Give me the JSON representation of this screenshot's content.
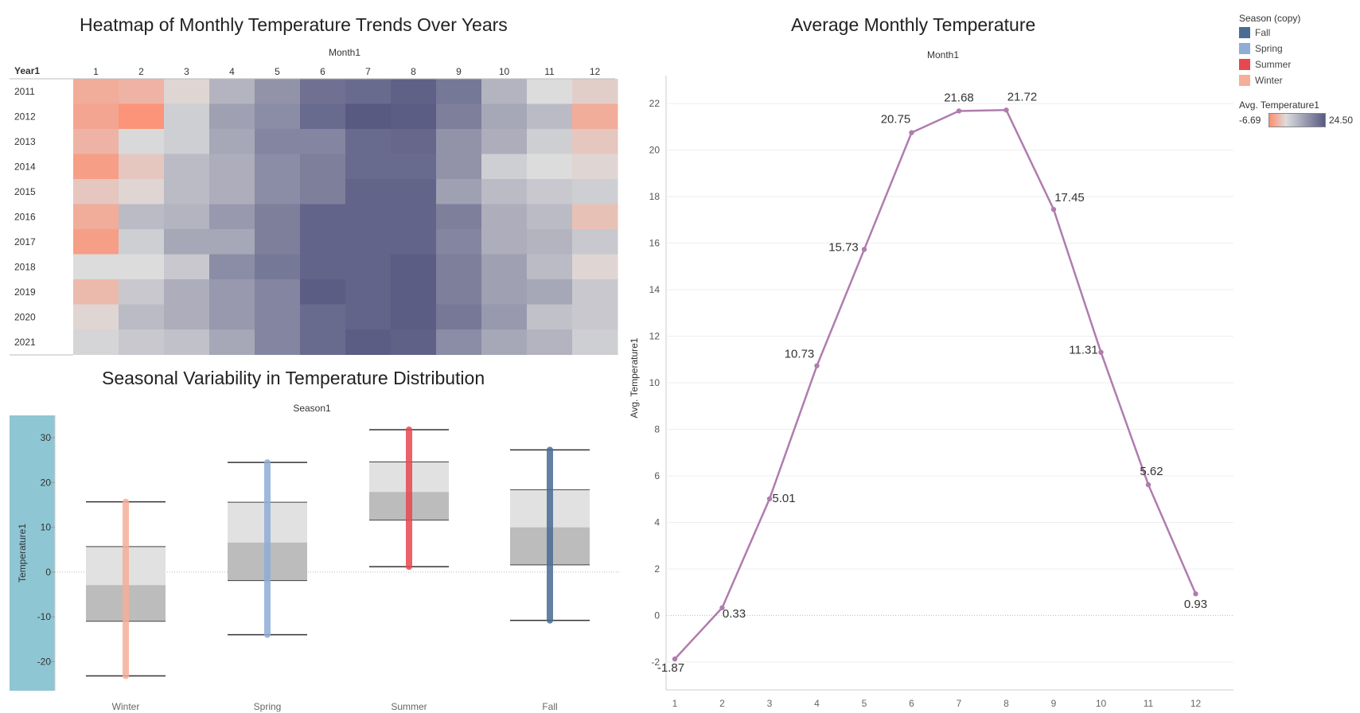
{
  "heatmap": {
    "title": "Heatmap of Monthly Temperature Trends Over Years",
    "column_header": "Month1",
    "row_header": "Year1"
  },
  "boxplot": {
    "title": "Seasonal Variability in Temperature Distribution",
    "column_header": "Season1",
    "ylabel": "Temperature1"
  },
  "linechart": {
    "title": "Average Monthly Temperature",
    "column_header": "Month1",
    "ylabel": "Avg. Temperature1"
  },
  "legend": {
    "season_title": "Season (copy)",
    "seasons": [
      {
        "label": "Fall",
        "color": "#4a6b94"
      },
      {
        "label": "Spring",
        "color": "#8fadd6"
      },
      {
        "label": "Summer",
        "color": "#e8474f"
      },
      {
        "label": "Winter",
        "color": "#f7ae99"
      }
    ],
    "temp_title": "Avg. Temperature1",
    "temp_min": "-6.69",
    "temp_max": "24.50"
  },
  "colors": {
    "heat_low": "#ff8c6e",
    "heat_mid": "#dcdcdc",
    "heat_high": "#585a82",
    "line": "#b07cae",
    "box_upper": "#e1e1e1",
    "box_lower": "#bcbcbc",
    "axis_band": "#8ec6d4"
  },
  "chart_data": [
    {
      "type": "heatmap",
      "title": "Heatmap of Monthly Temperature Trends Over Years",
      "xlabel": "Month1",
      "ylabel": "Year1",
      "x": [
        "1",
        "2",
        "3",
        "4",
        "5",
        "6",
        "7",
        "8",
        "9",
        "10",
        "11",
        "12"
      ],
      "y": [
        "2011",
        "2012",
        "2013",
        "2014",
        "2015",
        "2016",
        "2017",
        "2018",
        "2019",
        "2020",
        "2021"
      ],
      "color_range": [
        -6.69,
        24.5
      ],
      "values": [
        [
          -2.0,
          -1.0,
          4.0,
          11.0,
          16.0,
          21.0,
          22.0,
          23.5,
          20.0,
          11.0,
          5.0,
          3.0
        ],
        [
          -3.0,
          -5.5,
          7.0,
          14.0,
          17.0,
          22.0,
          24.5,
          24.0,
          19.0,
          13.0,
          10.0,
          -2.0
        ],
        [
          -1.0,
          5.5,
          7.0,
          13.0,
          18.0,
          18.0,
          22.0,
          22.5,
          16.0,
          12.0,
          7.0,
          2.0
        ],
        [
          -4.0,
          2.0,
          10.0,
          12.0,
          17.0,
          19.0,
          22.0,
          22.0,
          16.0,
          7.0,
          5.0,
          4.0
        ],
        [
          2.0,
          4.0,
          10.0,
          12.0,
          17.0,
          19.0,
          23.0,
          23.0,
          14.0,
          10.0,
          8.0,
          7.0
        ],
        [
          -2.0,
          10.0,
          11.0,
          15.0,
          19.0,
          23.0,
          23.0,
          23.0,
          19.0,
          12.0,
          10.0,
          1.0
        ],
        [
          -4.0,
          7.0,
          13.0,
          13.0,
          19.0,
          23.0,
          23.0,
          23.0,
          18.0,
          12.0,
          11.0,
          8.0
        ],
        [
          5.0,
          5.0,
          8.0,
          17.0,
          20.0,
          23.0,
          23.0,
          24.0,
          19.0,
          14.0,
          10.0,
          4.0
        ],
        [
          0.0,
          8.0,
          12.0,
          15.0,
          18.0,
          24.0,
          23.0,
          24.0,
          19.0,
          14.0,
          13.0,
          8.0
        ],
        [
          4.0,
          10.0,
          12.0,
          15.0,
          18.0,
          22.0,
          23.0,
          24.0,
          20.0,
          15.0,
          9.0,
          8.0
        ],
        [
          6.0,
          8.0,
          9.0,
          13.0,
          18.0,
          22.0,
          24.0,
          23.5,
          17.0,
          13.0,
          11.0,
          7.0
        ]
      ]
    },
    {
      "type": "box",
      "title": "Seasonal Variability in Temperature Distribution",
      "xlabel": "Season1",
      "ylabel": "Temperature1",
      "categories": [
        "Winter",
        "Spring",
        "Summer",
        "Fall"
      ],
      "boxes": [
        {
          "min": -23.2,
          "q1": -11.0,
          "median": -2.9,
          "q3": 5.7,
          "max": 15.7,
          "pts_min": -23.2,
          "pts_max": 15.7,
          "color": "#f7ae99"
        },
        {
          "min": -14.0,
          "q1": -1.9,
          "median": 6.6,
          "q3": 15.6,
          "max": 24.5,
          "pts_min": -14.0,
          "pts_max": 24.5,
          "color": "#8fadd6"
        },
        {
          "min": 1.2,
          "q1": 11.6,
          "median": 17.9,
          "q3": 24.6,
          "max": 31.8,
          "pts_min": 1.2,
          "pts_max": 31.8,
          "color": "#e8474f"
        },
        {
          "min": -10.8,
          "q1": 1.6,
          "median": 10.0,
          "q3": 18.4,
          "max": 27.3,
          "pts_min": -10.8,
          "pts_max": 27.3,
          "color": "#4a6b94"
        }
      ],
      "yticks": [
        -20,
        -10,
        0,
        10,
        20,
        30
      ],
      "ylim": [
        -26.5,
        35
      ]
    },
    {
      "type": "line",
      "title": "Average Monthly Temperature",
      "xlabel": "Month1",
      "ylabel": "Avg. Temperature1",
      "x": [
        1,
        2,
        3,
        4,
        5,
        6,
        7,
        8,
        9,
        10,
        11,
        12
      ],
      "values": [
        -1.87,
        0.33,
        5.01,
        10.73,
        15.73,
        20.75,
        21.68,
        21.72,
        17.45,
        11.31,
        5.62,
        0.93
      ],
      "labels": [
        "-1.87",
        "0.33",
        "5.01",
        "10.73",
        "15.73",
        "20.75",
        "21.68",
        "21.72",
        "17.45",
        "11.31",
        "5.62",
        "0.93"
      ],
      "yticks": [
        -2,
        0,
        2,
        4,
        6,
        8,
        10,
        12,
        14,
        16,
        18,
        20,
        22
      ],
      "ylim": [
        -3.2,
        23.2
      ]
    }
  ]
}
